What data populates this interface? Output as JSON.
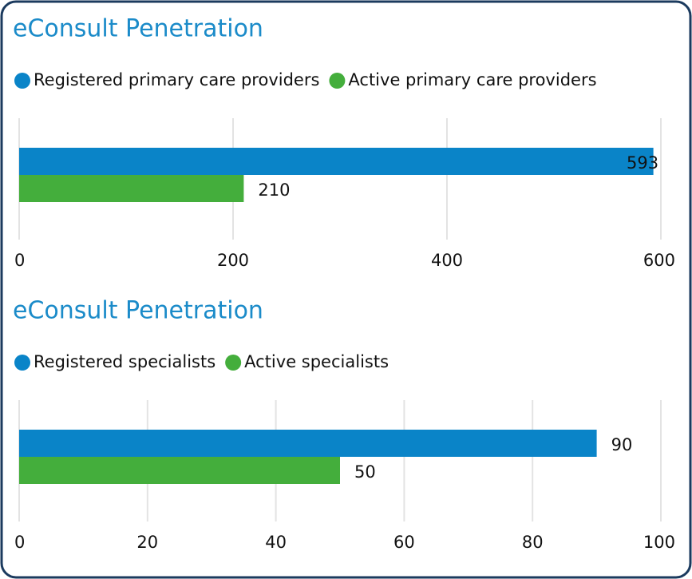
{
  "chart_data": [
    {
      "type": "bar",
      "orientation": "horizontal",
      "title": "eConsult Penetration",
      "series": [
        {
          "name": "Registered primary care providers",
          "color": "#0a84c8",
          "values": [
            593
          ]
        },
        {
          "name": "Active primary care providers",
          "color": "#44ae3c",
          "values": [
            210
          ]
        }
      ],
      "xlim": [
        0,
        600
      ],
      "xticks": [
        0,
        200,
        400,
        600
      ],
      "grid": true
    },
    {
      "type": "bar",
      "orientation": "horizontal",
      "title": "eConsult Penetration",
      "series": [
        {
          "name": "Registered specialists",
          "color": "#0a84c8",
          "values": [
            90
          ]
        },
        {
          "name": "Active specialists",
          "color": "#44ae3c",
          "values": [
            50
          ]
        }
      ],
      "xlim": [
        0,
        100
      ],
      "xticks": [
        0,
        20,
        40,
        60,
        80,
        100
      ],
      "grid": true
    }
  ]
}
